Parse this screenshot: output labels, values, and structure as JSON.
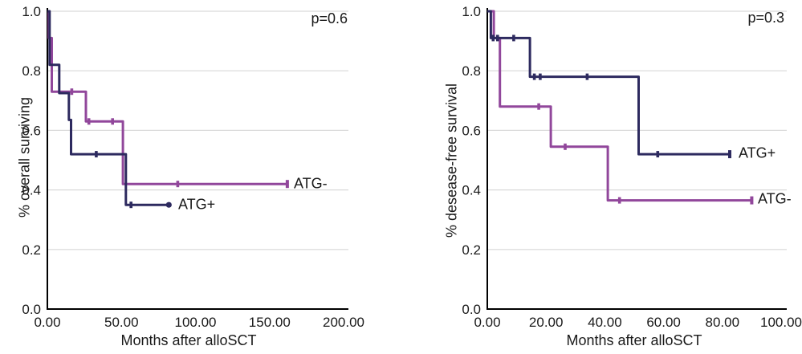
{
  "chart_data": [
    {
      "id": "overall-survival",
      "type": "line",
      "subtype": "kaplan-meier-step",
      "p_value": "p=0.6",
      "xlabel": "Months after alloSCT",
      "ylabel": "% overall surviving",
      "xlim": [
        0,
        200
      ],
      "ylim": [
        0,
        1.0
      ],
      "grid": "horizontal",
      "legend_position": "inline-right-of-curve",
      "xticks": [
        {
          "value": 0,
          "label": "0.00"
        },
        {
          "value": 50,
          "label": "50.00"
        },
        {
          "value": 100,
          "label": "100.00"
        },
        {
          "value": 150,
          "label": "150.00"
        },
        {
          "value": 200,
          "label": "200.00"
        }
      ],
      "yticks": [
        {
          "value": 0.0,
          "label": "0.0"
        },
        {
          "value": 0.2,
          "label": "0.2"
        },
        {
          "value": 0.4,
          "label": "0.4"
        },
        {
          "value": 0.6,
          "label": "0.6"
        },
        {
          "value": 0.8,
          "label": "0.8"
        },
        {
          "value": 1.0,
          "label": "1.0"
        }
      ],
      "series": [
        {
          "name": "ATG-",
          "color": "#91479b",
          "points": [
            [
              0,
              1.0
            ],
            [
              1,
              1.0
            ],
            [
              1,
              0.91
            ],
            [
              3,
              0.91
            ],
            [
              3,
              0.73
            ],
            [
              26,
              0.73
            ],
            [
              26,
              0.63
            ],
            [
              51,
              0.63
            ],
            [
              51,
              0.42
            ],
            [
              162,
              0.42
            ]
          ],
          "censors": [
            [
              16.5,
              0.73
            ],
            [
              28,
              0.63
            ],
            [
              44,
              0.63
            ],
            [
              88,
              0.42
            ]
          ],
          "end_marker": {
            "x": 162,
            "y": 0.42,
            "style": "bar"
          }
        },
        {
          "name": "ATG+",
          "color": "#2d2a5f",
          "points": [
            [
              0,
              1.0
            ],
            [
              1.5,
              1.0
            ],
            [
              1.5,
              0.82
            ],
            [
              8,
              0.82
            ],
            [
              8,
              0.725
            ],
            [
              14.5,
              0.725
            ],
            [
              14.5,
              0.635
            ],
            [
              16,
              0.635
            ],
            [
              16,
              0.52
            ],
            [
              53,
              0.52
            ],
            [
              53,
              0.35
            ],
            [
              82,
              0.35
            ]
          ],
          "censors": [
            [
              33,
              0.52
            ],
            [
              56.5,
              0.35
            ]
          ],
          "end_marker": {
            "x": 82,
            "y": 0.35,
            "style": "dot"
          }
        }
      ]
    },
    {
      "id": "disease-free-survival",
      "type": "line",
      "subtype": "kaplan-meier-step",
      "p_value": "p=0.3",
      "xlabel": "Months after alloSCT",
      "ylabel": "% desease-free survival",
      "xlim": [
        0,
        100
      ],
      "ylim": [
        0,
        1.0
      ],
      "grid": "horizontal",
      "legend_position": "inline-right-of-curve",
      "xticks": [
        {
          "value": 0,
          "label": "0.00"
        },
        {
          "value": 20,
          "label": "20.00"
        },
        {
          "value": 40,
          "label": "40.00"
        },
        {
          "value": 60,
          "label": "60.00"
        },
        {
          "value": 80,
          "label": "80.00"
        },
        {
          "value": 100,
          "label": "100.00"
        }
      ],
      "yticks": [
        {
          "value": 0.0,
          "label": "0.0"
        },
        {
          "value": 0.2,
          "label": "0.2"
        },
        {
          "value": 0.4,
          "label": "0.4"
        },
        {
          "value": 0.6,
          "label": "0.6"
        },
        {
          "value": 0.8,
          "label": "0.8"
        },
        {
          "value": 1.0,
          "label": "1.0"
        }
      ],
      "series": [
        {
          "name": "ATG-",
          "color": "#91479b",
          "points": [
            [
              0,
              1.0
            ],
            [
              2.2,
              1.0
            ],
            [
              2.2,
              0.91
            ],
            [
              4.3,
              0.91
            ],
            [
              4.3,
              0.68
            ],
            [
              21.6,
              0.68
            ],
            [
              21.6,
              0.545
            ],
            [
              41,
              0.545
            ],
            [
              41,
              0.365
            ],
            [
              90,
              0.365
            ]
          ],
          "censors": [
            [
              17.5,
              0.68
            ],
            [
              26.5,
              0.545
            ],
            [
              45,
              0.365
            ]
          ],
          "end_marker": {
            "x": 90,
            "y": 0.365,
            "style": "bar"
          }
        },
        {
          "name": "ATG+",
          "color": "#2d2a5f",
          "points": [
            [
              0,
              1.0
            ],
            [
              1.2,
              1.0
            ],
            [
              1.2,
              0.91
            ],
            [
              14.5,
              0.91
            ],
            [
              14.5,
              0.78
            ],
            [
              51.5,
              0.78
            ],
            [
              51.5,
              0.52
            ],
            [
              82.5,
              0.52
            ]
          ],
          "censors": [
            [
              2,
              0.91
            ],
            [
              3.5,
              0.91
            ],
            [
              9,
              0.91
            ],
            [
              16,
              0.78
            ],
            [
              18,
              0.78
            ],
            [
              34,
              0.78
            ],
            [
              58,
              0.52
            ]
          ],
          "end_marker": {
            "x": 82.5,
            "y": 0.52,
            "style": "bar"
          }
        }
      ]
    }
  ]
}
